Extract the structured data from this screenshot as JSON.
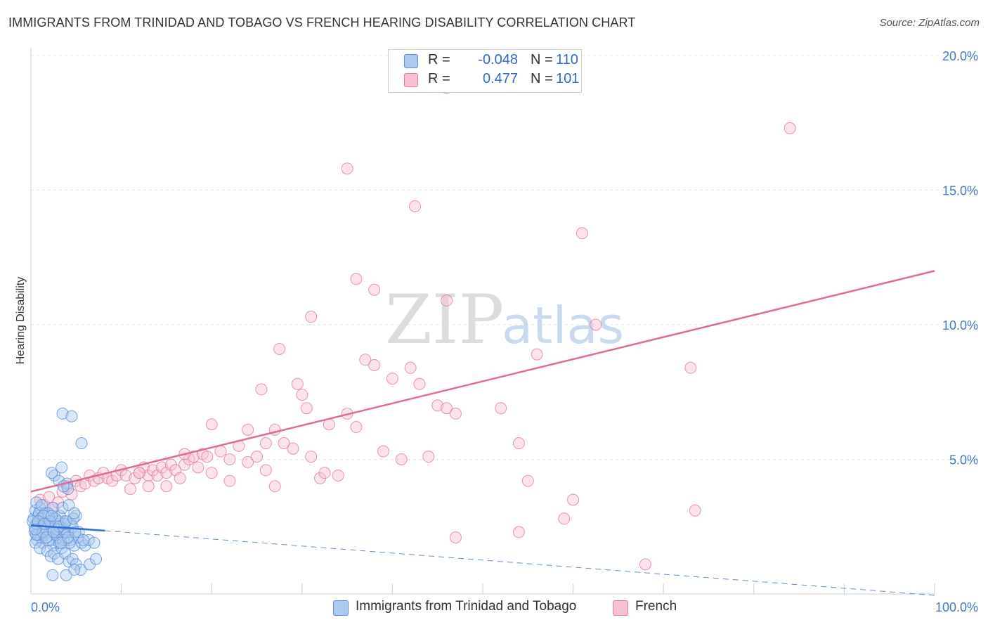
{
  "title": "IMMIGRANTS FROM TRINIDAD AND TOBAGO VS FRENCH HEARING DISABILITY CORRELATION CHART",
  "source": "Source: ZipAtlas.com",
  "watermark": {
    "zip": "ZIP",
    "atlas": "atlas"
  },
  "legend": {
    "r_label": "R =",
    "n_label": "N =",
    "rows": [
      {
        "r": "-0.048",
        "n": "110",
        "color": "#aec9f0",
        "border": "#5b8fd6"
      },
      {
        "r": "0.477",
        "n": "101",
        "color": "#f8c0d2",
        "border": "#e07aa0"
      }
    ]
  },
  "chart_data": {
    "type": "scatter",
    "title": "IMMIGRANTS FROM TRINIDAD AND TOBAGO VS FRENCH HEARING DISABILITY CORRELATION CHART",
    "xlabel": "",
    "ylabel": "Hearing Disability",
    "xlim": [
      0,
      100
    ],
    "ylim": [
      0,
      20
    ],
    "x_tick_labels": [
      "0.0%",
      "100.0%"
    ],
    "y_ticks": [
      5,
      10,
      15,
      20
    ],
    "y_tick_labels": [
      "5.0%",
      "10.0%",
      "15.0%",
      "20.0%"
    ],
    "grid": true,
    "series": [
      {
        "name": "Immigrants from Trinidad and Tobago",
        "color": "#5b8fd6",
        "fill": "#aec9f0",
        "trend": {
          "x0": 0,
          "y0": 2.55,
          "x1": 8.2,
          "y1": 2.35,
          "dash_to_x": 100,
          "dash_to_y": -0.05
        },
        "points": [
          [
            0.3,
            2.8
          ],
          [
            0.5,
            3.1
          ],
          [
            0.6,
            2.6
          ],
          [
            0.8,
            2.9
          ],
          [
            1.0,
            3.2
          ],
          [
            1.2,
            2.5
          ],
          [
            1.4,
            2.7
          ],
          [
            0.4,
            2.3
          ],
          [
            0.7,
            2.0
          ],
          [
            0.9,
            2.4
          ],
          [
            1.1,
            2.1
          ],
          [
            1.3,
            1.9
          ],
          [
            1.5,
            2.2
          ],
          [
            1.7,
            2.6
          ],
          [
            1.9,
            2.8
          ],
          [
            2.1,
            2.3
          ],
          [
            2.3,
            2.0
          ],
          [
            2.5,
            1.8
          ],
          [
            2.7,
            2.4
          ],
          [
            2.9,
            2.1
          ],
          [
            3.1,
            1.9
          ],
          [
            3.3,
            2.5
          ],
          [
            3.5,
            2.2
          ],
          [
            3.7,
            2.7
          ],
          [
            3.9,
            2.0
          ],
          [
            0.6,
            3.4
          ],
          [
            0.9,
            3.0
          ],
          [
            1.2,
            3.3
          ],
          [
            1.6,
            3.0
          ],
          [
            2.0,
            2.9
          ],
          [
            2.4,
            3.2
          ],
          [
            2.8,
            2.6
          ],
          [
            3.2,
            2.9
          ],
          [
            3.6,
            2.4
          ],
          [
            4.0,
            2.3
          ],
          [
            4.4,
            2.0
          ],
          [
            4.8,
            1.8
          ],
          [
            5.2,
            2.1
          ],
          [
            5.6,
            1.9
          ],
          [
            6.0,
            1.8
          ],
          [
            6.4,
            2.0
          ],
          [
            0.5,
            1.9
          ],
          [
            1.0,
            1.7
          ],
          [
            1.8,
            1.6
          ],
          [
            2.2,
            1.4
          ],
          [
            2.6,
            1.5
          ],
          [
            3.0,
            1.3
          ],
          [
            3.4,
            1.7
          ],
          [
            3.8,
            1.5
          ],
          [
            4.2,
            1.2
          ],
          [
            4.6,
            1.3
          ],
          [
            5.0,
            1.1
          ],
          [
            5.5,
            0.9
          ],
          [
            6.5,
            1.1
          ],
          [
            7.0,
            1.9
          ],
          [
            7.2,
            1.3
          ],
          [
            2.4,
            0.7
          ],
          [
            3.9,
            0.7
          ],
          [
            4.8,
            0.9
          ],
          [
            0.8,
            2.2
          ],
          [
            1.6,
            2.4
          ],
          [
            2.0,
            2.0
          ],
          [
            2.8,
            2.2
          ],
          [
            3.6,
            2.0
          ],
          [
            4.4,
            2.6
          ],
          [
            5.0,
            2.9
          ],
          [
            1.1,
            2.8
          ],
          [
            1.9,
            3.0
          ],
          [
            2.7,
            2.8
          ],
          [
            3.5,
            3.2
          ],
          [
            0.7,
            2.6
          ],
          [
            1.4,
            2.9
          ],
          [
            2.2,
            2.5
          ],
          [
            3.0,
            2.7
          ],
          [
            3.8,
            2.3
          ],
          [
            4.6,
            2.5
          ],
          [
            0.4,
            2.5
          ],
          [
            0.6,
            2.2
          ],
          [
            1.3,
            2.3
          ],
          [
            2.1,
            2.7
          ],
          [
            2.9,
            2.4
          ],
          [
            3.7,
            2.6
          ],
          [
            4.3,
            1.9
          ],
          [
            5.3,
            2.3
          ],
          [
            5.8,
            2.0
          ],
          [
            0.2,
            2.7
          ],
          [
            0.5,
            2.4
          ],
          [
            0.8,
            2.7
          ],
          [
            1.5,
            2.6
          ],
          [
            2.3,
            2.9
          ],
          [
            3.1,
            2.5
          ],
          [
            3.9,
            2.7
          ],
          [
            4.7,
            2.8
          ],
          [
            1.7,
            2.1
          ],
          [
            2.5,
            2.3
          ],
          [
            3.3,
            1.9
          ],
          [
            4.1,
            2.1
          ],
          [
            4.9,
            2.3
          ],
          [
            2.6,
            4.4
          ],
          [
            3.4,
            4.7
          ],
          [
            3.1,
            4.2
          ],
          [
            4.0,
            4.1
          ],
          [
            4.1,
            3.9
          ],
          [
            2.3,
            4.5
          ],
          [
            4.2,
            3.3
          ],
          [
            4.8,
            3.0
          ],
          [
            3.5,
            6.7
          ],
          [
            4.5,
            6.6
          ],
          [
            5.6,
            5.6
          ],
          [
            3.6,
            4.0
          ]
        ]
      },
      {
        "name": "French",
        "color": "#e07aa0",
        "fill": "#f8c0d2",
        "trend": {
          "x0": 0,
          "y0": 3.8,
          "x1": 100,
          "y1": 12.0
        },
        "points": [
          [
            1.0,
            3.5
          ],
          [
            1.5,
            3.3
          ],
          [
            2.0,
            3.6
          ],
          [
            2.5,
            3.2
          ],
          [
            3.0,
            3.4
          ],
          [
            3.5,
            3.8
          ],
          [
            4.0,
            4.0
          ],
          [
            4.5,
            3.7
          ],
          [
            5.0,
            4.2
          ],
          [
            5.5,
            4.0
          ],
          [
            6.0,
            4.1
          ],
          [
            6.5,
            4.4
          ],
          [
            7.0,
            4.2
          ],
          [
            7.5,
            4.3
          ],
          [
            8.0,
            4.5
          ],
          [
            8.5,
            4.3
          ],
          [
            9.0,
            4.2
          ],
          [
            9.5,
            4.4
          ],
          [
            10.0,
            4.6
          ],
          [
            10.5,
            4.4
          ],
          [
            11.0,
            3.9
          ],
          [
            11.5,
            4.3
          ],
          [
            12.0,
            4.5
          ],
          [
            12.5,
            4.7
          ],
          [
            13.0,
            4.4
          ],
          [
            13.5,
            4.6
          ],
          [
            14.0,
            4.4
          ],
          [
            14.5,
            4.7
          ],
          [
            15.0,
            4.5
          ],
          [
            15.5,
            4.8
          ],
          [
            16.0,
            4.6
          ],
          [
            16.5,
            4.3
          ],
          [
            17.0,
            4.8
          ],
          [
            17.5,
            5.0
          ],
          [
            18.0,
            5.1
          ],
          [
            18.5,
            4.7
          ],
          [
            19.0,
            5.2
          ],
          [
            20.0,
            4.5
          ],
          [
            21.0,
            5.3
          ],
          [
            22.0,
            5.0
          ],
          [
            23.0,
            5.5
          ],
          [
            24.0,
            4.9
          ],
          [
            25.0,
            5.1
          ],
          [
            26.0,
            4.6
          ],
          [
            27.0,
            6.1
          ],
          [
            28.0,
            5.6
          ],
          [
            29.0,
            5.4
          ],
          [
            30.0,
            7.4
          ],
          [
            31.0,
            5.1
          ],
          [
            32.0,
            4.3
          ],
          [
            33.0,
            6.3
          ],
          [
            34.0,
            4.4
          ],
          [
            35.0,
            6.7
          ],
          [
            36.0,
            6.2
          ],
          [
            37.0,
            8.7
          ],
          [
            38.0,
            8.5
          ],
          [
            39.0,
            5.3
          ],
          [
            40.0,
            8.0
          ],
          [
            41.0,
            5.0
          ],
          [
            42.0,
            8.4
          ],
          [
            43.0,
            7.8
          ],
          [
            44.0,
            5.1
          ],
          [
            45.0,
            7.0
          ],
          [
            46.0,
            6.9
          ],
          [
            47.0,
            6.7
          ],
          [
            36.0,
            11.7
          ],
          [
            38.0,
            11.3
          ],
          [
            31.0,
            10.3
          ],
          [
            27.5,
            9.1
          ],
          [
            29.5,
            7.8
          ],
          [
            25.5,
            7.6
          ],
          [
            24.0,
            6.1
          ],
          [
            20.0,
            6.3
          ],
          [
            19.5,
            5.1
          ],
          [
            13.0,
            4.0
          ],
          [
            15.0,
            4.0
          ],
          [
            12.0,
            4.5
          ],
          [
            30.5,
            6.9
          ],
          [
            32.5,
            4.5
          ],
          [
            35.0,
            15.8
          ],
          [
            42.5,
            14.4
          ],
          [
            46.0,
            10.9
          ],
          [
            46.0,
            18.8
          ],
          [
            56.0,
            8.9
          ],
          [
            62.5,
            10.0
          ],
          [
            60.0,
            3.5
          ],
          [
            61.0,
            13.4
          ],
          [
            54.0,
            5.6
          ],
          [
            55.0,
            4.2
          ],
          [
            52.0,
            6.9
          ],
          [
            54.0,
            2.3
          ],
          [
            59.0,
            2.8
          ],
          [
            47.0,
            2.1
          ],
          [
            68.0,
            1.1
          ],
          [
            84.0,
            17.3
          ],
          [
            73.0,
            8.4
          ],
          [
            73.5,
            3.1
          ],
          [
            27.0,
            4.0
          ],
          [
            22.0,
            4.2
          ],
          [
            17.0,
            5.2
          ],
          [
            26.0,
            5.6
          ]
        ]
      }
    ]
  },
  "bottom_legend": [
    {
      "label": "Immigrants from Trinidad and Tobago",
      "color": "#aec9f0",
      "border": "#5b8fd6"
    },
    {
      "label": "French",
      "color": "#f8c0d2",
      "border": "#e07aa0"
    }
  ]
}
